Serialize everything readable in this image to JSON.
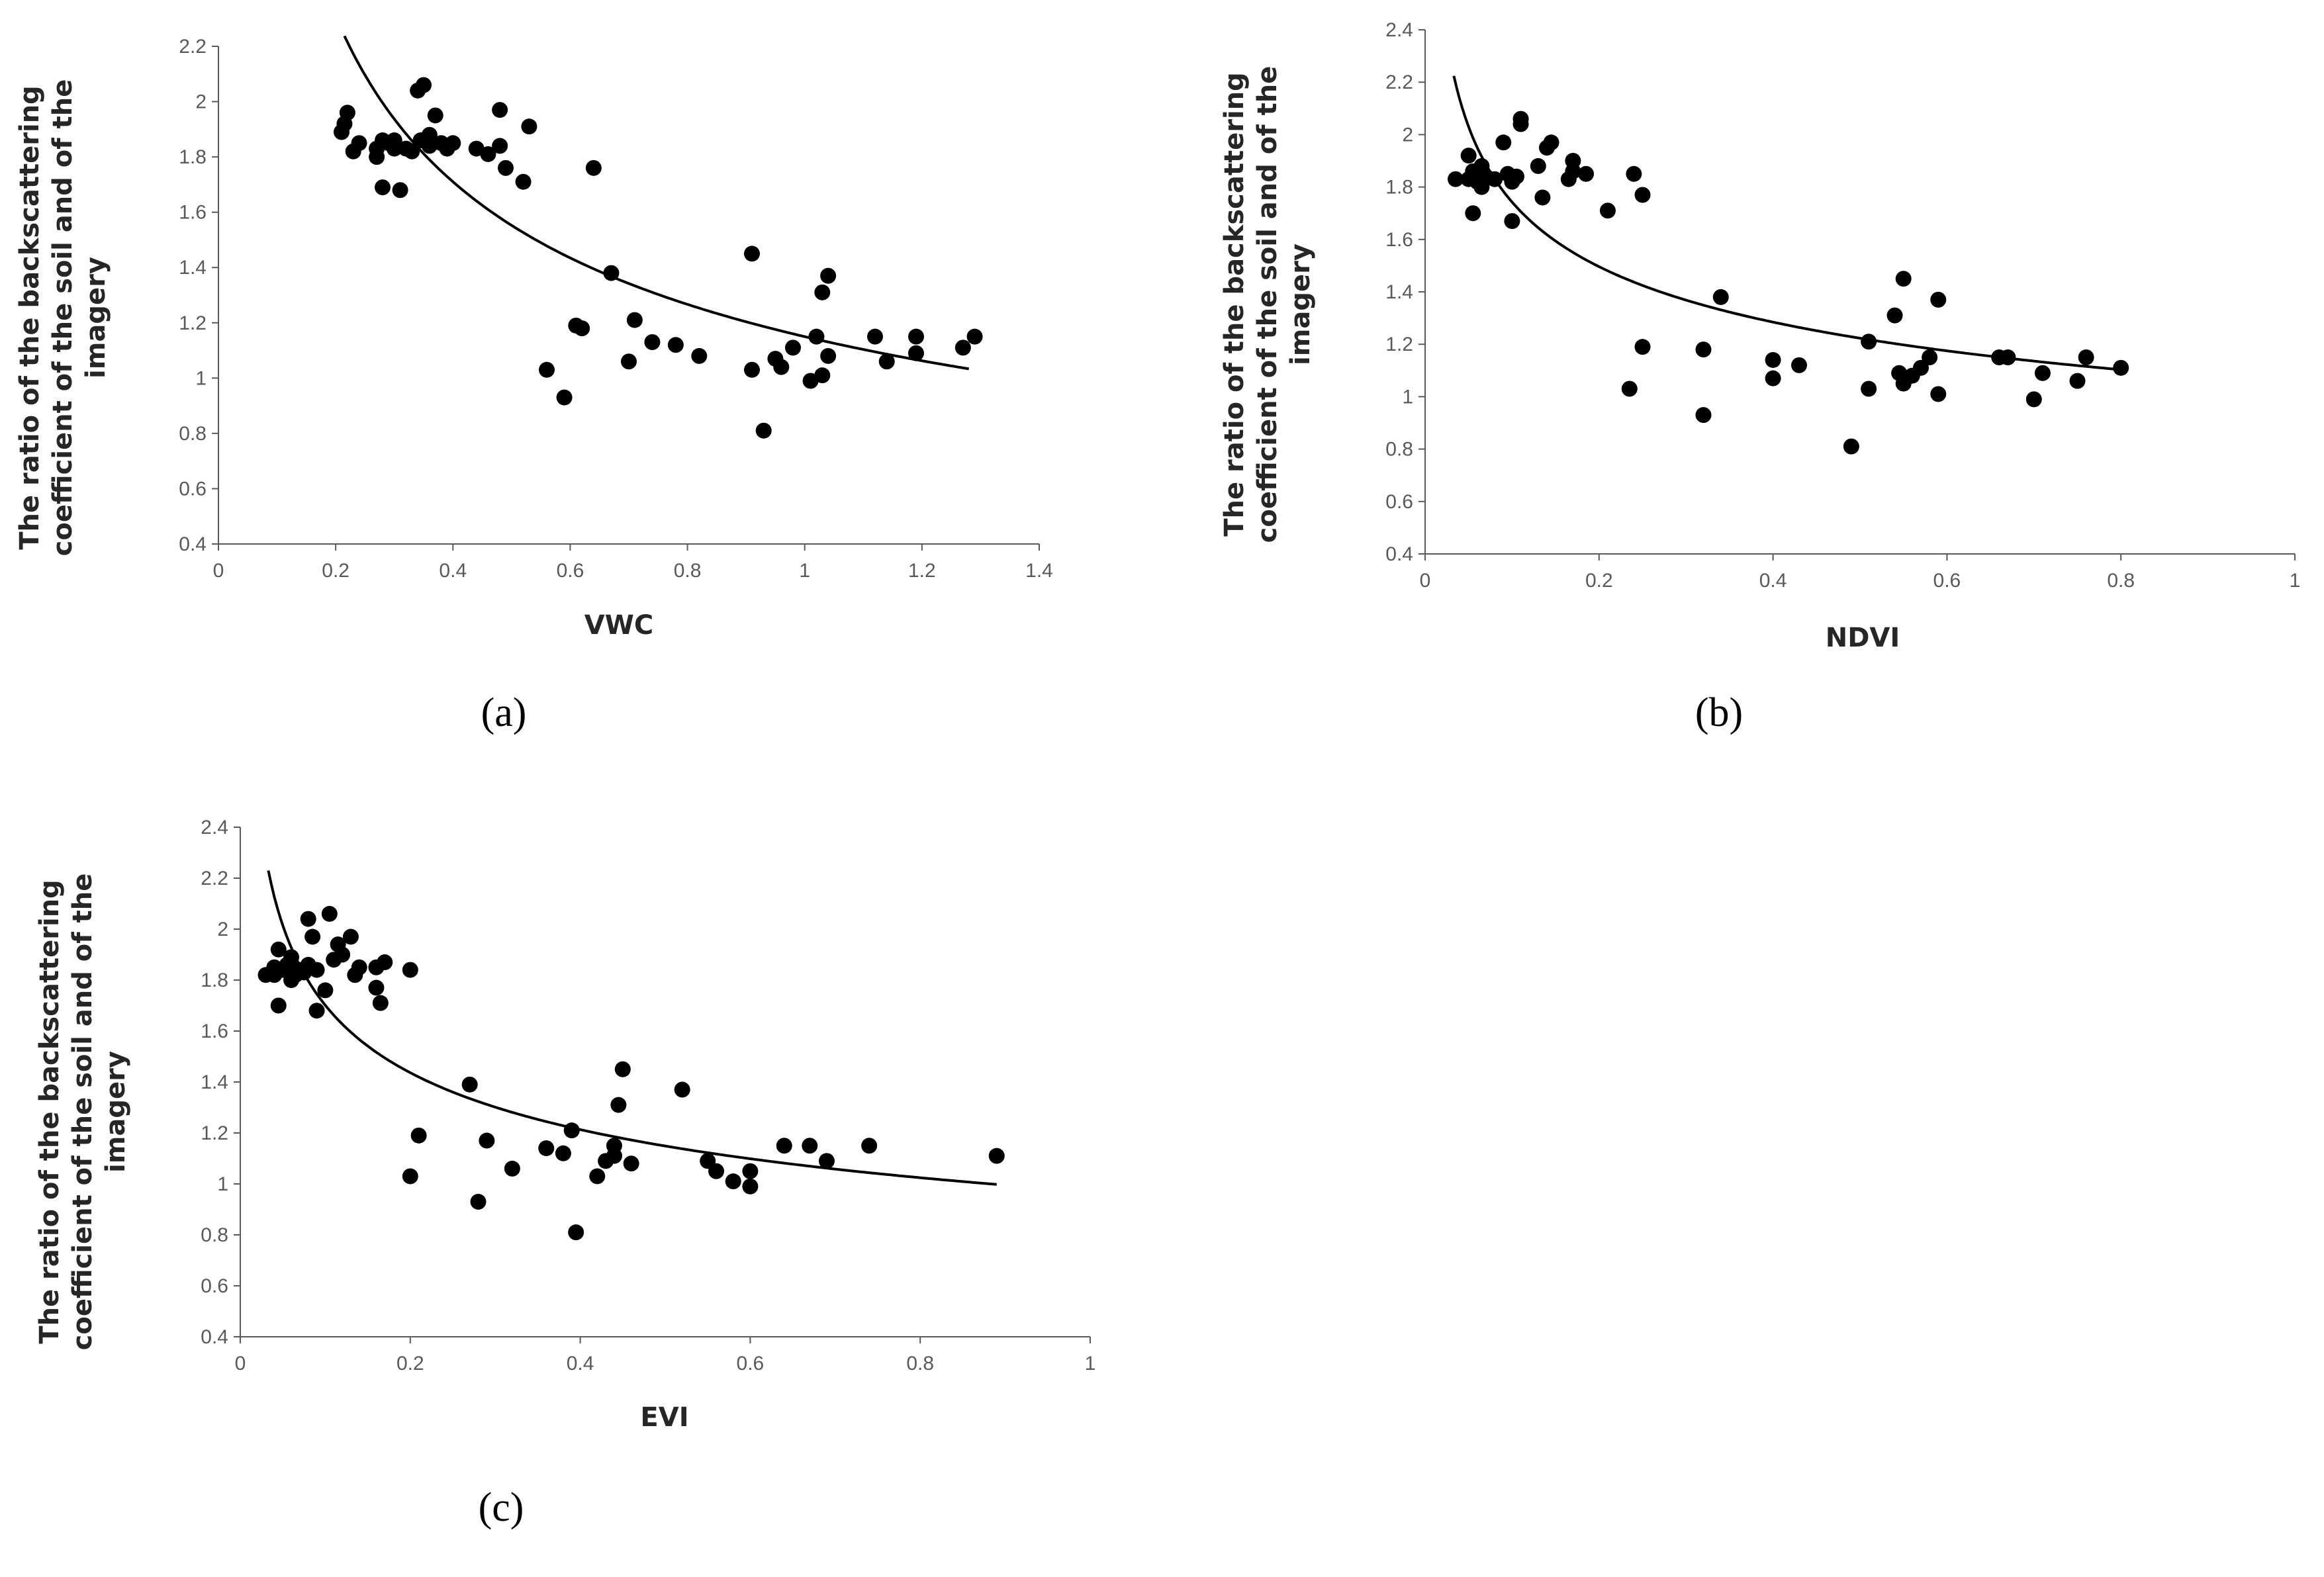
{
  "colors": {
    "points": "#000000",
    "curve": "#000000",
    "axis": "#595959",
    "text": "#262626"
  },
  "chart_data": [
    {
      "type": "scatter",
      "panel_label": "(a)",
      "xlabel": "VWC",
      "ylabel_lines": [
        "The ratio of the backscattering",
        "coefficient of the soil and of the",
        "imagery"
      ],
      "xlim": [
        0,
        1.4
      ],
      "ylim": [
        0.4,
        2.2
      ],
      "xticks": [
        0,
        0.2,
        0.4,
        0.6,
        0.8,
        1,
        1.2,
        1.4
      ],
      "xtick_labels": [
        "0",
        "0.2",
        "0.4",
        "0.6",
        "0.8",
        "1",
        "1.2",
        "1.4"
      ],
      "yticks": [
        0.4,
        0.6,
        0.8,
        1,
        1.2,
        1.4,
        1.6,
        1.8,
        2,
        2.2
      ],
      "ytick_labels": [
        "0.4",
        "0.6",
        "0.8",
        "1",
        "1.2",
        "1.4",
        "1.6",
        "1.8",
        "2",
        "2.2"
      ],
      "trendline": {
        "type": "power",
        "a": 1.15,
        "b": -0.433,
        "xmin": 0.215,
        "xmax": 1.28
      },
      "points": [
        [
          0.21,
          1.89
        ],
        [
          0.215,
          1.92
        ],
        [
          0.22,
          1.96
        ],
        [
          0.23,
          1.82
        ],
        [
          0.24,
          1.85
        ],
        [
          0.27,
          1.8
        ],
        [
          0.27,
          1.83
        ],
        [
          0.28,
          1.86
        ],
        [
          0.28,
          1.69
        ],
        [
          0.29,
          1.85
        ],
        [
          0.3,
          1.83
        ],
        [
          0.3,
          1.86
        ],
        [
          0.31,
          1.68
        ],
        [
          0.32,
          1.83
        ],
        [
          0.33,
          1.82
        ],
        [
          0.34,
          2.04
        ],
        [
          0.35,
          2.06
        ],
        [
          0.345,
          1.86
        ],
        [
          0.36,
          1.88
        ],
        [
          0.36,
          1.84
        ],
        [
          0.37,
          1.95
        ],
        [
          0.38,
          1.85
        ],
        [
          0.39,
          1.83
        ],
        [
          0.4,
          1.85
        ],
        [
          0.44,
          1.83
        ],
        [
          0.46,
          1.81
        ],
        [
          0.48,
          1.97
        ],
        [
          0.48,
          1.84
        ],
        [
          0.49,
          1.76
        ],
        [
          0.52,
          1.71
        ],
        [
          0.53,
          1.91
        ],
        [
          0.56,
          1.03
        ],
        [
          0.59,
          0.93
        ],
        [
          0.61,
          1.19
        ],
        [
          0.62,
          1.18
        ],
        [
          0.64,
          1.76
        ],
        [
          0.67,
          1.38
        ],
        [
          0.7,
          1.06
        ],
        [
          0.71,
          1.21
        ],
        [
          0.74,
          1.13
        ],
        [
          0.78,
          1.12
        ],
        [
          0.82,
          1.08
        ],
        [
          0.91,
          1.03
        ],
        [
          0.91,
          1.45
        ],
        [
          0.93,
          0.81
        ],
        [
          0.95,
          1.07
        ],
        [
          0.96,
          1.04
        ],
        [
          0.98,
          1.11
        ],
        [
          1.01,
          0.99
        ],
        [
          1.02,
          1.15
        ],
        [
          1.03,
          1.31
        ],
        [
          1.03,
          1.01
        ],
        [
          1.04,
          1.08
        ],
        [
          1.04,
          1.37
        ],
        [
          1.12,
          1.15
        ],
        [
          1.14,
          1.06
        ],
        [
          1.19,
          1.09
        ],
        [
          1.19,
          1.15
        ],
        [
          1.27,
          1.11
        ],
        [
          1.29,
          1.15
        ]
      ]
    },
    {
      "type": "scatter",
      "panel_label": "(b)",
      "xlabel": "NDVI",
      "ylabel_lines": [
        "The ratio of the backscattering",
        "coefficient of the soil and of the",
        "imagery"
      ],
      "xlim": [
        0,
        1
      ],
      "ylim": [
        0.4,
        2.4
      ],
      "xticks": [
        0,
        0.2,
        0.4,
        0.6,
        0.8,
        1
      ],
      "xtick_labels": [
        "0",
        "0.2",
        "0.4",
        "0.6",
        "0.8",
        "1"
      ],
      "yticks": [
        0.4,
        0.6,
        0.8,
        1,
        1.2,
        1.4,
        1.6,
        1.8,
        2,
        2.2,
        2.4
      ],
      "ytick_labels": [
        "0.4",
        "0.6",
        "0.8",
        "1",
        "1.2",
        "1.4",
        "1.6",
        "1.8",
        "2",
        "2.2",
        "2.4"
      ],
      "trendline": {
        "type": "power",
        "a": 1.05,
        "b": -0.22,
        "xmin": 0.033,
        "xmax": 0.8
      },
      "points": [
        [
          0.035,
          1.83
        ],
        [
          0.05,
          1.83
        ],
        [
          0.05,
          1.92
        ],
        [
          0.055,
          1.86
        ],
        [
          0.055,
          1.7
        ],
        [
          0.06,
          1.82
        ],
        [
          0.065,
          1.8
        ],
        [
          0.065,
          1.88
        ],
        [
          0.07,
          1.84
        ],
        [
          0.08,
          1.83
        ],
        [
          0.09,
          1.97
        ],
        [
          0.095,
          1.85
        ],
        [
          0.1,
          1.67
        ],
        [
          0.1,
          1.82
        ],
        [
          0.105,
          1.84
        ],
        [
          0.11,
          2.04
        ],
        [
          0.11,
          2.06
        ],
        [
          0.13,
          1.88
        ],
        [
          0.135,
          1.76
        ],
        [
          0.14,
          1.95
        ],
        [
          0.145,
          1.97
        ],
        [
          0.165,
          1.83
        ],
        [
          0.17,
          1.86
        ],
        [
          0.17,
          1.9
        ],
        [
          0.185,
          1.85
        ],
        [
          0.21,
          1.71
        ],
        [
          0.235,
          1.03
        ],
        [
          0.24,
          1.85
        ],
        [
          0.25,
          1.19
        ],
        [
          0.25,
          1.77
        ],
        [
          0.32,
          1.18
        ],
        [
          0.32,
          0.93
        ],
        [
          0.34,
          1.38
        ],
        [
          0.4,
          1.14
        ],
        [
          0.4,
          1.07
        ],
        [
          0.43,
          1.12
        ],
        [
          0.49,
          0.81
        ],
        [
          0.51,
          1.03
        ],
        [
          0.51,
          1.21
        ],
        [
          0.54,
          1.31
        ],
        [
          0.545,
          1.09
        ],
        [
          0.55,
          1.45
        ],
        [
          0.55,
          1.05
        ],
        [
          0.56,
          1.08
        ],
        [
          0.57,
          1.11
        ],
        [
          0.58,
          1.15
        ],
        [
          0.59,
          1.01
        ],
        [
          0.59,
          1.37
        ],
        [
          0.66,
          1.15
        ],
        [
          0.67,
          1.15
        ],
        [
          0.7,
          0.99
        ],
        [
          0.71,
          1.09
        ],
        [
          0.75,
          1.06
        ],
        [
          0.76,
          1.15
        ],
        [
          0.8,
          1.11
        ]
      ]
    },
    {
      "type": "scatter",
      "panel_label": "(c)",
      "xlabel": "EVI",
      "ylabel_lines": [
        "The ratio of the backscattering",
        "coefficient of the soil and of the",
        "imagery"
      ],
      "xlim": [
        0,
        1
      ],
      "ylim": [
        0.4,
        2.4
      ],
      "xticks": [
        0,
        0.2,
        0.4,
        0.6,
        0.8,
        1
      ],
      "xtick_labels": [
        "0",
        "0.2",
        "0.4",
        "0.6",
        "0.8",
        "1"
      ],
      "yticks": [
        0.4,
        0.6,
        0.8,
        1,
        1.2,
        1.4,
        1.6,
        1.8,
        2,
        2.2,
        2.4
      ],
      "ytick_labels": [
        "0.4",
        "0.6",
        "0.8",
        "1",
        "1.2",
        "1.4",
        "1.6",
        "1.8",
        "2",
        "2.2",
        "2.4"
      ],
      "trendline": {
        "type": "power",
        "a": 0.97,
        "b": -0.244,
        "xmin": 0.033,
        "xmax": 0.89
      },
      "points": [
        [
          0.03,
          1.82
        ],
        [
          0.04,
          1.82
        ],
        [
          0.04,
          1.85
        ],
        [
          0.045,
          1.92
        ],
        [
          0.045,
          1.7
        ],
        [
          0.05,
          1.84
        ],
        [
          0.055,
          1.86
        ],
        [
          0.06,
          1.8
        ],
        [
          0.06,
          1.89
        ],
        [
          0.065,
          1.82
        ],
        [
          0.07,
          1.84
        ],
        [
          0.075,
          1.83
        ],
        [
          0.08,
          1.86
        ],
        [
          0.08,
          2.04
        ],
        [
          0.085,
          1.97
        ],
        [
          0.09,
          1.68
        ],
        [
          0.09,
          1.84
        ],
        [
          0.1,
          1.76
        ],
        [
          0.105,
          2.06
        ],
        [
          0.11,
          1.88
        ],
        [
          0.115,
          1.94
        ],
        [
          0.12,
          1.9
        ],
        [
          0.13,
          1.97
        ],
        [
          0.135,
          1.82
        ],
        [
          0.14,
          1.85
        ],
        [
          0.16,
          1.77
        ],
        [
          0.16,
          1.85
        ],
        [
          0.165,
          1.71
        ],
        [
          0.17,
          1.87
        ],
        [
          0.2,
          1.84
        ],
        [
          0.2,
          1.03
        ],
        [
          0.21,
          1.19
        ],
        [
          0.27,
          1.39
        ],
        [
          0.28,
          0.93
        ],
        [
          0.29,
          1.17
        ],
        [
          0.32,
          1.06
        ],
        [
          0.36,
          1.14
        ],
        [
          0.38,
          1.12
        ],
        [
          0.39,
          1.21
        ],
        [
          0.395,
          0.81
        ],
        [
          0.42,
          1.03
        ],
        [
          0.43,
          1.09
        ],
        [
          0.44,
          1.11
        ],
        [
          0.44,
          1.15
        ],
        [
          0.445,
          1.31
        ],
        [
          0.45,
          1.45
        ],
        [
          0.46,
          1.08
        ],
        [
          0.52,
          1.37
        ],
        [
          0.55,
          1.09
        ],
        [
          0.56,
          1.05
        ],
        [
          0.58,
          1.01
        ],
        [
          0.6,
          0.99
        ],
        [
          0.6,
          1.05
        ],
        [
          0.64,
          1.15
        ],
        [
          0.67,
          1.15
        ],
        [
          0.69,
          1.09
        ],
        [
          0.74,
          1.15
        ],
        [
          0.89,
          1.11
        ]
      ]
    }
  ]
}
